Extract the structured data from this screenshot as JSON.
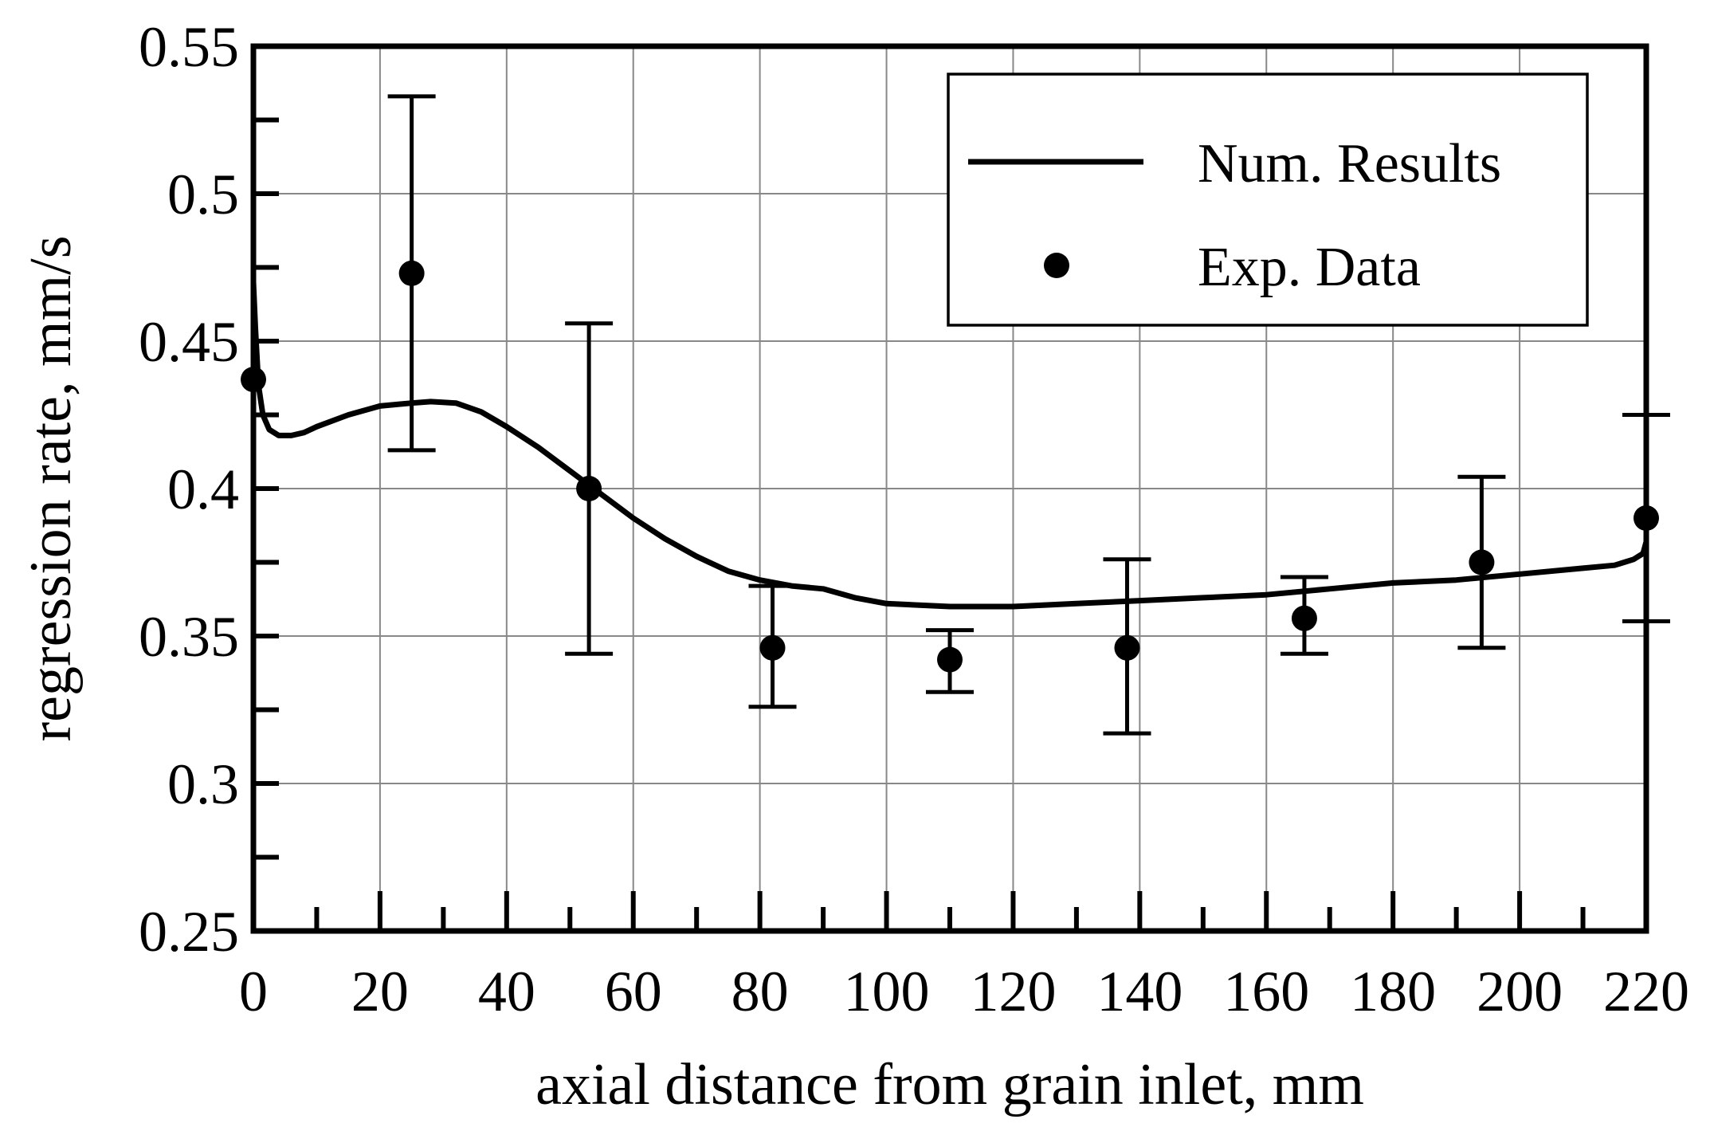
{
  "chart_data": {
    "type": "scatter",
    "title": "",
    "xlabel": "axial distance from grain inlet, mm",
    "ylabel": "regression rate, mm/s",
    "xlim": [
      0,
      220
    ],
    "ylim": [
      0.25,
      0.55
    ],
    "xticks": [
      "0",
      "20",
      "40",
      "60",
      "80",
      "100",
      "120",
      "140",
      "160",
      "180",
      "200",
      "220"
    ],
    "yticks": [
      "0.25",
      "0.3",
      "0.35",
      "0.4",
      "0.45",
      "0.5",
      "0.55"
    ],
    "grid": true,
    "legend_position": "top-right",
    "colors": {
      "series": "#000000",
      "grid": "#888888"
    },
    "series": [
      {
        "name": "Num. Results",
        "type": "line",
        "x": [
          0,
          0.3,
          0.8,
          1.5,
          2.5,
          4,
          6,
          8,
          10,
          15,
          20,
          25,
          28,
          32,
          36,
          40,
          45,
          50,
          55,
          60,
          65,
          70,
          75,
          80,
          85,
          90,
          95,
          100,
          110,
          120,
          130,
          140,
          150,
          160,
          170,
          180,
          190,
          200,
          210,
          215,
          218,
          219.5,
          220
        ],
        "y": [
          0.47,
          0.455,
          0.435,
          0.425,
          0.42,
          0.418,
          0.418,
          0.419,
          0.421,
          0.425,
          0.428,
          0.429,
          0.4295,
          0.429,
          0.426,
          0.421,
          0.414,
          0.406,
          0.398,
          0.39,
          0.383,
          0.377,
          0.372,
          0.369,
          0.367,
          0.366,
          0.363,
          0.361,
          0.36,
          0.36,
          0.361,
          0.362,
          0.363,
          0.364,
          0.366,
          0.368,
          0.369,
          0.371,
          0.373,
          0.374,
          0.376,
          0.378,
          0.382
        ]
      },
      {
        "name": "Exp. Data",
        "type": "scatter",
        "x": [
          0,
          25,
          53,
          82,
          110,
          138,
          166,
          194,
          220
        ],
        "y": [
          0.437,
          0.473,
          0.4,
          0.346,
          0.342,
          0.346,
          0.356,
          0.375,
          0.39
        ],
        "error_low": [
          null,
          0.413,
          0.344,
          0.326,
          0.331,
          0.317,
          0.344,
          0.346,
          0.355
        ],
        "error_high": [
          null,
          0.533,
          0.456,
          0.367,
          0.352,
          0.376,
          0.37,
          0.404,
          0.425
        ]
      }
    ]
  }
}
